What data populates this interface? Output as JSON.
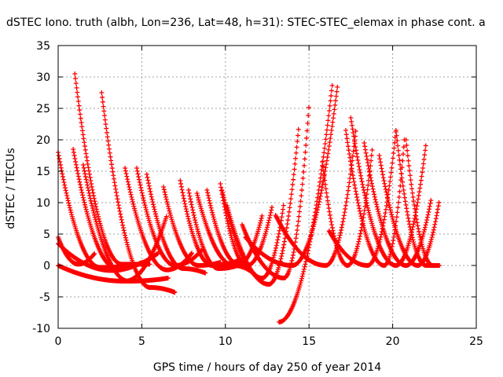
{
  "chart_data": {
    "type": "scatter",
    "title": "dSTEC Iono. truth (albh, Lon=236, Lat=48, h=31): STEC-STEC_elemax in phase cont. a",
    "xlabel": "GPS time / hours of day 250 of year 2014",
    "ylabel": "dSTEC  / TECUs",
    "xlim": [
      0,
      25
    ],
    "ylim": [
      -10,
      35
    ],
    "xticks": [
      0,
      5,
      10,
      15,
      20,
      25
    ],
    "yticks": [
      -10,
      -5,
      0,
      5,
      10,
      15,
      20,
      25,
      30,
      35
    ],
    "xtick_labels": [
      "0",
      "5",
      "10",
      "15",
      "20",
      "25"
    ],
    "ytick_labels": [
      "-10",
      "-5",
      "0",
      "5",
      "10",
      "15",
      "20",
      "25",
      "30",
      "35"
    ],
    "grid": true,
    "marker": "+",
    "color": "#ff0000",
    "arc_shape_note": "each arc: dSTEC(t) = peak * ((tend - t)/(tend - t0))^2 before minimum, then rises toward end value",
    "arcs": [
      {
        "t0": 0.0,
        "tmin": 2.5,
        "tend": 4.5,
        "start": 18.0,
        "min": -0.3,
        "end": 0.0
      },
      {
        "t0": 0.0,
        "tmin": 1.2,
        "tend": 2.2,
        "start": 4.5,
        "min": 0.2,
        "end": 2.0
      },
      {
        "t0": 0.0,
        "tmin": 3.2,
        "tend": 5.0,
        "start": 3.5,
        "min": -0.8,
        "end": 0.5
      },
      {
        "t0": 0.0,
        "tmin": 4.0,
        "tend": 6.5,
        "start": 0.0,
        "min": -2.5,
        "end": 8.0
      },
      {
        "t0": 0.9,
        "tmin": 3.5,
        "tend": 6.0,
        "start": 18.5,
        "min": -0.5,
        "end": 2.0
      },
      {
        "t0": 1.0,
        "tmin": 3.8,
        "tend": 5.5,
        "start": 30.5,
        "min": 0.2,
        "end": 0.2
      },
      {
        "t0": 1.5,
        "tmin": 4.2,
        "tend": 6.6,
        "start": 16.0,
        "min": -2.5,
        "end": -2.0
      },
      {
        "t0": 2.6,
        "tmin": 5.5,
        "tend": 7.0,
        "start": 27.5,
        "min": -3.5,
        "end": -4.3
      },
      {
        "t0": 4.0,
        "tmin": 6.5,
        "tend": 8.0,
        "start": 15.5,
        "min": -0.7,
        "end": 2.0
      },
      {
        "t0": 4.7,
        "tmin": 7.0,
        "tend": 8.6,
        "start": 15.5,
        "min": 0.0,
        "end": 2.5
      },
      {
        "t0": 5.3,
        "tmin": 7.5,
        "tend": 8.8,
        "start": 14.5,
        "min": -0.5,
        "end": -1.2
      },
      {
        "t0": 6.3,
        "tmin": 8.4,
        "tend": 9.7,
        "start": 12.5,
        "min": 0.0,
        "end": 0.5
      },
      {
        "t0": 7.3,
        "tmin": 9.2,
        "tend": 10.8,
        "start": 13.5,
        "min": 0.0,
        "end": 0.8
      },
      {
        "t0": 7.8,
        "tmin": 9.6,
        "tend": 11.2,
        "start": 12.0,
        "min": -0.5,
        "end": 0.5
      },
      {
        "t0": 8.3,
        "tmin": 10.5,
        "tend": 11.8,
        "start": 11.5,
        "min": 0.0,
        "end": -1.5
      },
      {
        "t0": 8.9,
        "tmin": 10.8,
        "tend": 12.2,
        "start": 12.0,
        "min": 0.2,
        "end": 8.0
      },
      {
        "t0": 9.7,
        "tmin": 11.3,
        "tend": 12.8,
        "start": 13.0,
        "min": 0.0,
        "end": 9.5
      },
      {
        "t0": 9.8,
        "tmin": 12.2,
        "tend": 13.5,
        "start": 12.0,
        "min": -2.0,
        "end": 10.0
      },
      {
        "t0": 10.1,
        "tmin": 12.6,
        "tend": 14.4,
        "start": 9.5,
        "min": -3.0,
        "end": 22.5
      },
      {
        "t0": 11.0,
        "tmin": 13.5,
        "tend": 15.0,
        "start": 6.5,
        "min": -2.0,
        "end": 25.5
      },
      {
        "t0": 13.2,
        "tmin": 13.2,
        "tend": 16.4,
        "start": -9.0,
        "min": -9.0,
        "end": 29.0
      },
      {
        "t0": 11.2,
        "tmin": 14.0,
        "tend": 16.7,
        "start": 4.5,
        "min": 0.0,
        "end": 28.5
      },
      {
        "t0": 13.0,
        "tmin": 16.0,
        "tend": 17.8,
        "start": 8.0,
        "min": 0.0,
        "end": 21.5
      },
      {
        "t0": 15.8,
        "tmin": 17.3,
        "tend": 18.8,
        "start": 16.5,
        "min": 0.0,
        "end": 19.0
      },
      {
        "t0": 16.2,
        "tmin": 18.5,
        "tend": 20.2,
        "start": 5.5,
        "min": 0.0,
        "end": 21.5
      },
      {
        "t0": 17.2,
        "tmin": 19.5,
        "tend": 20.7,
        "start": 21.5,
        "min": 0.0,
        "end": 20.0
      },
      {
        "t0": 17.5,
        "tmin": 20.2,
        "tend": 22.0,
        "start": 23.5,
        "min": 0.0,
        "end": 19.5
      },
      {
        "t0": 18.3,
        "tmin": 20.8,
        "tend": 22.3,
        "start": 19.5,
        "min": 0.0,
        "end": 10.5
      },
      {
        "t0": 19.2,
        "tmin": 21.5,
        "tend": 22.8,
        "start": 17.5,
        "min": 0.0,
        "end": 10.5
      },
      {
        "t0": 20.2,
        "tmin": 22.0,
        "tend": 22.8,
        "start": 21.5,
        "min": 0.0,
        "end": 0.0
      },
      {
        "t0": 20.8,
        "tmin": 22.4,
        "tend": 22.8,
        "start": 20.0,
        "min": 0.0,
        "end": 0.0
      }
    ]
  }
}
